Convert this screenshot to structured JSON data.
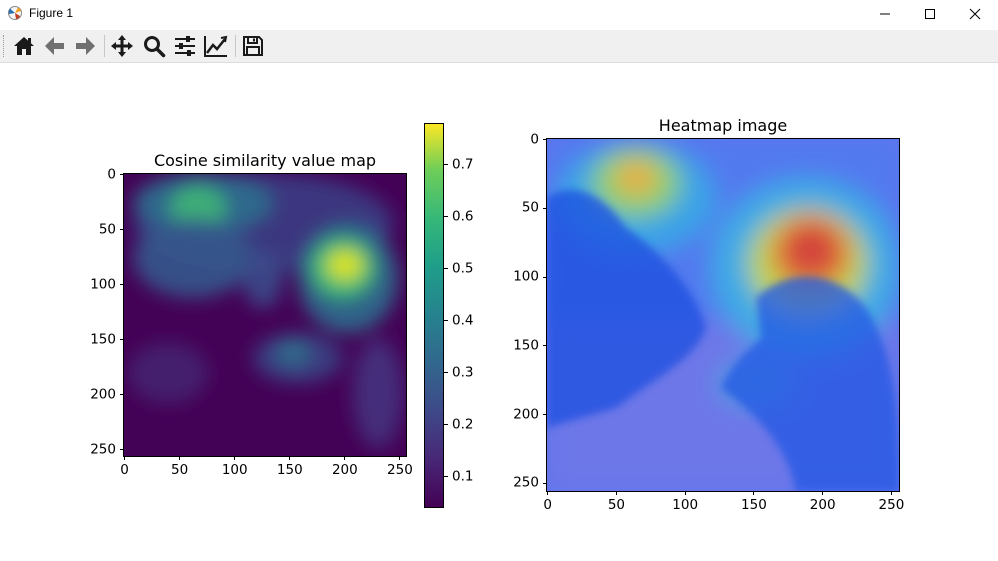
{
  "window": {
    "title": "Figure 1",
    "controls": [
      "minimize",
      "maximize",
      "close"
    ]
  },
  "toolbar": {
    "buttons": [
      {
        "name": "home",
        "icon": "home-icon"
      },
      {
        "name": "back",
        "icon": "arrow-left-icon"
      },
      {
        "name": "forward",
        "icon": "arrow-right-icon"
      },
      {
        "name": "pan",
        "icon": "move-arrows-icon"
      },
      {
        "name": "zoom",
        "icon": "magnifier-icon"
      },
      {
        "name": "configure-subplots",
        "icon": "sliders-icon"
      },
      {
        "name": "edit-axis",
        "icon": "line-chart-icon"
      },
      {
        "name": "save",
        "icon": "floppy-disk-icon"
      }
    ]
  },
  "figure": {
    "left_title": "Cosine similarity value map",
    "right_title": "Heatmap image",
    "colormap": "viridis",
    "colors": {
      "viridis_low": "#440154",
      "viridis_mid": "#21918c",
      "viridis_high": "#fde725",
      "jet_low": "#1f3cff",
      "jet_high": "#e33b1e"
    }
  },
  "chart_data": [
    {
      "type": "heatmap",
      "title": "Cosine similarity value map",
      "xlim": [
        0,
        256
      ],
      "ylim": [
        256,
        0
      ],
      "x_ticks": [
        "0",
        "50",
        "100",
        "150",
        "200",
        "250"
      ],
      "y_ticks": [
        "0",
        "50",
        "100",
        "150",
        "200",
        "250"
      ],
      "colorbar": {
        "range": [
          0.04,
          0.78
        ],
        "ticks": [
          "0.1",
          "0.2",
          "0.3",
          "0.4",
          "0.5",
          "0.6",
          "0.7"
        ]
      },
      "peak": {
        "x": 200,
        "y": 85,
        "value": 0.78
      }
    },
    {
      "type": "heatmap",
      "title": "Heatmap image",
      "xlim": [
        0,
        256
      ],
      "ylim": [
        256,
        0
      ],
      "x_ticks": [
        "0",
        "50",
        "100",
        "150",
        "200",
        "250"
      ],
      "y_ticks": [
        "0",
        "50",
        "100",
        "150",
        "200",
        "250"
      ]
    }
  ]
}
